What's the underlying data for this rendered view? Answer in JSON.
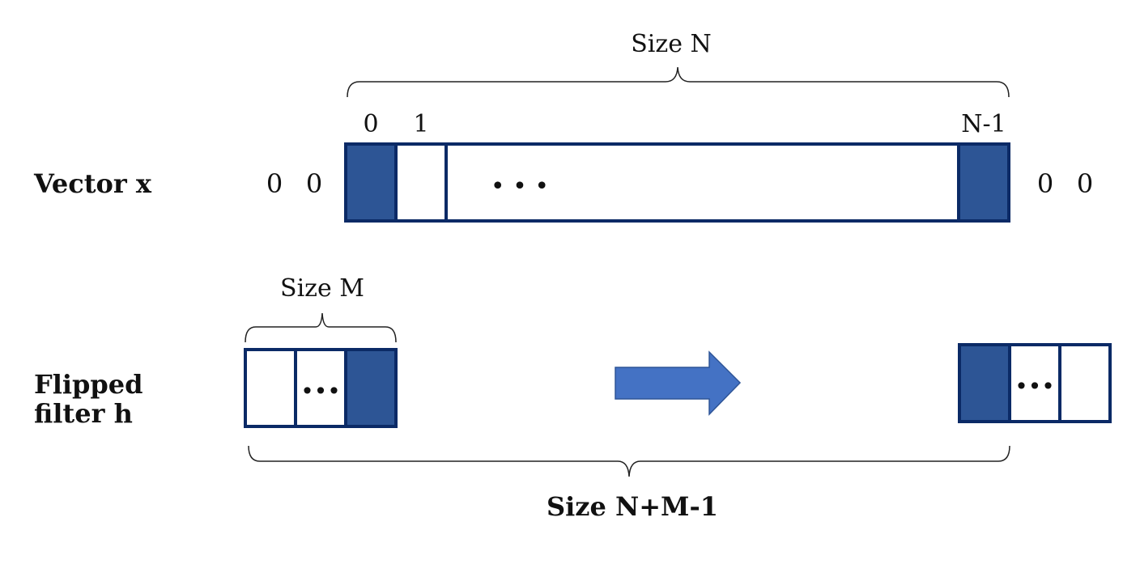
{
  "labels": {
    "vector_x": "Vector x",
    "flipped_line1": "Flipped",
    "flipped_line2": "filter h",
    "size_n": "Size N",
    "size_m": "Size M",
    "size_total": "Size N+M-1"
  },
  "vector_x": {
    "index_first": "0",
    "index_second": "1",
    "index_last": "N-1",
    "ellipsis": "• • •",
    "left_padding": [
      "0",
      "0"
    ],
    "right_padding": [
      "0",
      "0"
    ]
  },
  "filter_h": {
    "ellipsis": "•••"
  },
  "colors": {
    "border": "#0b2a66",
    "fill_dark": "#2d5595",
    "padding_zero": "#3a64a6",
    "arrow_fill": "#4472c4",
    "arrow_stroke": "#2f5597",
    "brace": "#222222"
  }
}
